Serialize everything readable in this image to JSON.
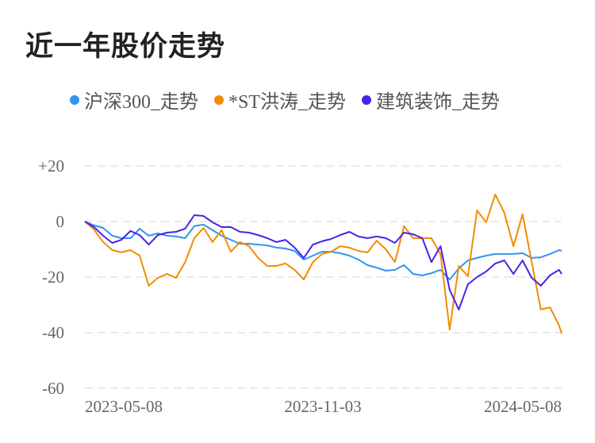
{
  "title": "近一年股价走势",
  "chart_data": {
    "type": "line",
    "title": "近一年股价走势",
    "xlabel": "",
    "ylabel": "",
    "ylim": [
      -60,
      20
    ],
    "yticks": [
      "+20",
      "0",
      "-20",
      "-40",
      "-60"
    ],
    "ytick_values": [
      20,
      0,
      -20,
      -40,
      -60
    ],
    "xticks": [
      "2023-05-08",
      "2023-11-03",
      "2024-05-08"
    ],
    "grid": true,
    "legend_position": "top",
    "x": [
      "2023-05-08",
      "2023-05-15",
      "2023-05-22",
      "2023-05-29",
      "2023-06-05",
      "2023-06-12",
      "2023-06-19",
      "2023-06-26",
      "2023-07-03",
      "2023-07-10",
      "2023-07-17",
      "2023-07-24",
      "2023-07-31",
      "2023-08-07",
      "2023-08-14",
      "2023-08-21",
      "2023-08-28",
      "2023-09-04",
      "2023-09-11",
      "2023-09-18",
      "2023-09-25",
      "2023-10-02",
      "2023-10-09",
      "2023-10-16",
      "2023-10-23",
      "2023-10-30",
      "2023-11-06",
      "2023-11-13",
      "2023-11-20",
      "2023-11-27",
      "2023-12-04",
      "2023-12-11",
      "2023-12-18",
      "2023-12-25",
      "2024-01-01",
      "2024-01-08",
      "2024-01-15",
      "2024-01-22",
      "2024-01-29",
      "2024-02-05",
      "2024-02-12",
      "2024-02-19",
      "2024-02-26",
      "2024-03-04",
      "2024-03-11",
      "2024-03-18",
      "2024-03-25",
      "2024-04-01",
      "2024-04-08",
      "2024-04-15",
      "2024-04-22",
      "2024-04-29",
      "2024-05-06",
      "2024-05-08"
    ],
    "series": [
      {
        "name": "沪深300_走势",
        "color": "#2f95f0",
        "values": [
          0,
          -1.4,
          -2.3,
          -5.1,
          -6,
          -6,
          -2.6,
          -5.1,
          -4.3,
          -5.1,
          -5.4,
          -6,
          -1.7,
          -1.1,
          -3.1,
          -5.1,
          -6.6,
          -8,
          -8,
          -8.3,
          -8.6,
          -9.4,
          -9.7,
          -10.6,
          -13.7,
          -12.3,
          -10.9,
          -10.9,
          -11.4,
          -12.3,
          -13.7,
          -15.7,
          -16.6,
          -17.7,
          -17.4,
          -15.7,
          -18.9,
          -19.4,
          -18.6,
          -17.4,
          -20.9,
          -16.9,
          -14,
          -13.1,
          -12.3,
          -11.7,
          -11.7,
          -11.7,
          -11.4,
          -13.1,
          -12.9,
          -11.7,
          -10.3,
          -10.6
        ]
      },
      {
        "name": "*ST洪涛_走势",
        "color": "#f28c00",
        "values": [
          0,
          -2.9,
          -7.4,
          -10.3,
          -11.1,
          -10.3,
          -12.3,
          -23.1,
          -20.3,
          -18.9,
          -20.3,
          -14.6,
          -6,
          -2.3,
          -7.4,
          -3.1,
          -10.9,
          -7.4,
          -8.9,
          -13.1,
          -16,
          -16,
          -15.1,
          -17.4,
          -20.9,
          -14.6,
          -11.7,
          -10.9,
          -8.9,
          -9.4,
          -10.6,
          -11.1,
          -6.9,
          -10,
          -14.6,
          -1.7,
          -6,
          -6,
          -6,
          -11.7,
          -38.9,
          -16,
          -19.7,
          4,
          -0.3,
          9.7,
          3.1,
          -8.9,
          2.6,
          -14.6,
          -31.7,
          -30.9,
          -37.4,
          -40.3
        ]
      },
      {
        "name": "建筑装饰_走势",
        "color": "#4a22e8",
        "values": [
          0,
          -2,
          -5.1,
          -7.7,
          -6.6,
          -3.4,
          -4.9,
          -8.3,
          -4.9,
          -4,
          -3.7,
          -2.6,
          2.3,
          2,
          -0.3,
          -2,
          -2,
          -3.7,
          -4,
          -4.9,
          -6,
          -7.4,
          -6.6,
          -9.4,
          -13.1,
          -8.3,
          -7.1,
          -6.3,
          -4.9,
          -3.7,
          -5.4,
          -6,
          -5.4,
          -6,
          -7.7,
          -4,
          -4.6,
          -6,
          -14.6,
          -8.9,
          -24.6,
          -31.7,
          -22.6,
          -20,
          -18,
          -15.1,
          -14,
          -18.9,
          -14,
          -20.3,
          -23.1,
          -19.4,
          -17.4,
          -18.9
        ]
      }
    ]
  }
}
